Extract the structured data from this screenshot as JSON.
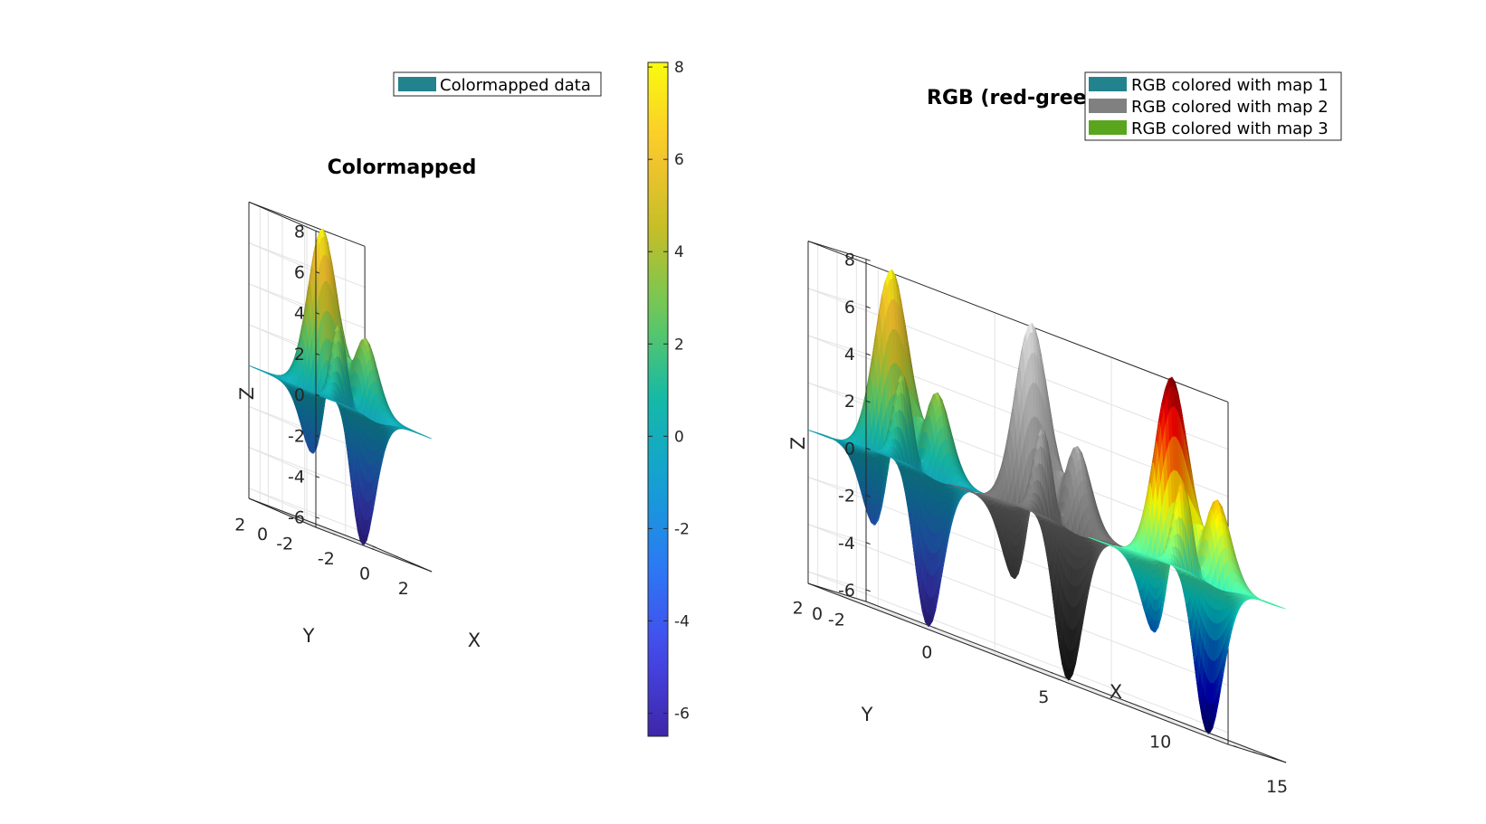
{
  "chart_data": [
    {
      "type": "surface3d",
      "title": "Colormapped",
      "function": "peaks",
      "legend": {
        "entries": [
          "Colormapped data"
        ],
        "location": "top-right"
      },
      "xlabel": "X",
      "ylabel": "Y",
      "zlabel": "Z",
      "xlim": [
        -3,
        3
      ],
      "ylim": [
        -3,
        3
      ],
      "zlim": [
        -6.5,
        8
      ],
      "x_ticks": [
        "-2",
        "0",
        "2"
      ],
      "y_ticks": [
        "-2",
        "0",
        "2"
      ],
      "z_ticks": [
        "-6",
        "-4",
        "-2",
        "0",
        "2",
        "4",
        "6",
        "8"
      ],
      "z_range": [
        -6.55,
        8.1
      ],
      "series": [
        {
          "name": "Colormapped data",
          "x_offset": 0,
          "color": "#22828e",
          "colormap": "parula"
        }
      ],
      "grid": true
    },
    {
      "type": "surface3d",
      "title": "RGB (red-green-blue)",
      "function": "peaks",
      "legend": {
        "entries": [
          "RGB colored with map 1",
          "RGB colored with map 2",
          "RGB colored with map 3"
        ],
        "location": "top-right"
      },
      "xlabel": "X",
      "ylabel": "Y",
      "zlabel": "Z",
      "xlim": [
        -3,
        15
      ],
      "ylim": [
        -3,
        3
      ],
      "zlim": [
        -6.5,
        8
      ],
      "x_ticks": [
        "0",
        "5",
        "10",
        "15"
      ],
      "y_ticks": [
        "-2",
        "0",
        "2"
      ],
      "z_ticks": [
        "-6",
        "-4",
        "-2",
        "0",
        "2",
        "4",
        "6",
        "8"
      ],
      "series": [
        {
          "name": "RGB colored with map 1",
          "x_offset": 0,
          "color": "#22828e",
          "colormap": "parula"
        },
        {
          "name": "RGB colored with map 2",
          "x_offset": 6,
          "color": "#808080",
          "colormap": "gray"
        },
        {
          "name": "RGB colored with map 3",
          "x_offset": 12,
          "color": "#5aa51e",
          "colormap": "jet"
        }
      ],
      "grid": true
    }
  ],
  "colorbar": {
    "ticks": [
      "8",
      "6",
      "4",
      "2",
      "0",
      "-2",
      "-4",
      "-6"
    ],
    "range": [
      -6.5,
      8.1
    ],
    "colormap": "parula"
  }
}
